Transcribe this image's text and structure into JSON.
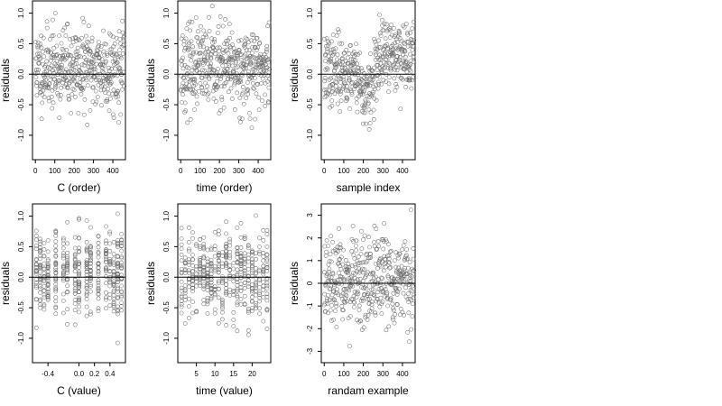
{
  "chart_data": [
    {
      "type": "scatter",
      "xlabel": "C (order)",
      "ylabel": "residuals",
      "xlim": [
        -15,
        465
      ],
      "ylim": [
        -1.4,
        1.2
      ],
      "xticks": [
        0,
        100,
        200,
        300,
        400
      ],
      "xtick_labels": [
        "0",
        "100",
        "200",
        "300",
        "400"
      ],
      "yticks": [
        -1.0,
        -0.5,
        0.0,
        0.5,
        1.0
      ],
      "ytick_labels": [
        "-1.0",
        "-0.5",
        "0.0",
        "0.5",
        "1.0"
      ],
      "hline": 0,
      "x_kind": "order",
      "seed": 11,
      "points": []
    },
    {
      "type": "scatter",
      "xlabel": "time (order)",
      "ylabel": "residuals",
      "xlim": [
        -15,
        465
      ],
      "ylim": [
        -1.4,
        1.2
      ],
      "xticks": [
        0,
        100,
        200,
        300,
        400
      ],
      "xtick_labels": [
        "0",
        "100",
        "200",
        "300",
        "400"
      ],
      "yticks": [
        -1.0,
        -0.5,
        0.0,
        0.5,
        1.0
      ],
      "ytick_labels": [
        "-1.0",
        "-0.5",
        "0.0",
        "0.5",
        "1.0"
      ],
      "hline": 0,
      "x_kind": "order",
      "seed": 23,
      "points": []
    },
    {
      "type": "scatter",
      "xlabel": "sample index",
      "ylabel": "residuals",
      "xlim": [
        -15,
        465
      ],
      "ylim": [
        -1.4,
        1.2
      ],
      "xticks": [
        0,
        100,
        200,
        300,
        400
      ],
      "xtick_labels": [
        "0",
        "100",
        "200",
        "300",
        "400"
      ],
      "yticks": [
        -1.0,
        -0.5,
        0.0,
        0.5,
        1.0
      ],
      "ytick_labels": [
        "-1.0",
        "-0.5",
        "0.0",
        "0.5",
        "1.0"
      ],
      "hline": 0,
      "x_kind": "index_trend",
      "seed": 37,
      "points": []
    },
    {
      "type": "scatter",
      "xlabel": "C (value)",
      "ylabel": "residuals",
      "xlim": [
        -0.6,
        0.6
      ],
      "ylim": [
        -1.4,
        1.2
      ],
      "xticks": [
        -0.4,
        0.0,
        0.2,
        0.4
      ],
      "xtick_labels": [
        "-0.4",
        "0.0",
        "0.2",
        "0.4"
      ],
      "yticks": [
        -1.0,
        -0.5,
        0.0,
        0.5,
        1.0
      ],
      "ytick_labels": [
        "-1.0",
        "-0.5",
        "0.0",
        "0.5",
        "1.0"
      ],
      "hline": 0,
      "x_kind": "discrete",
      "x_levels": [
        -0.55,
        -0.5,
        -0.45,
        -0.4,
        -0.3,
        -0.2,
        -0.15,
        -0.05,
        0.0,
        0.1,
        0.15,
        0.25,
        0.35,
        0.4,
        0.45,
        0.5,
        0.55
      ],
      "seed": 41,
      "points": []
    },
    {
      "type": "scatter",
      "xlabel": "time (value)",
      "ylabel": "residuals",
      "xlim": [
        0,
        25
      ],
      "ylim": [
        -1.4,
        1.2
      ],
      "xticks": [
        5,
        10,
        15,
        20
      ],
      "xtick_labels": [
        "5",
        "10",
        "15",
        "20"
      ],
      "yticks": [
        -1.0,
        -0.5,
        0.0,
        0.5,
        1.0
      ],
      "ytick_labels": [
        "-1.0",
        "-0.5",
        "0.0",
        "0.5",
        "1.0"
      ],
      "hline": 0,
      "x_kind": "discrete",
      "x_levels": [
        1,
        2,
        3,
        4,
        5,
        6,
        7,
        8,
        9,
        10,
        11,
        12,
        13,
        14,
        15,
        16,
        17,
        18,
        19,
        20,
        21,
        22,
        23,
        24
      ],
      "seed": 53,
      "points": []
    },
    {
      "type": "scatter",
      "xlabel": "randam example",
      "ylabel": "residuals",
      "xlim": [
        -15,
        465
      ],
      "ylim": [
        -3.5,
        3.5
      ],
      "xticks": [
        0,
        100,
        200,
        300,
        400
      ],
      "xtick_labels": [
        "0",
        "100",
        "200",
        "300",
        "400"
      ],
      "yticks": [
        -3,
        -2,
        -1,
        0,
        1,
        2,
        3
      ],
      "ytick_labels": [
        "-3",
        "-2",
        "-1",
        "0",
        "1",
        "2",
        "3"
      ],
      "hline": 0,
      "x_kind": "order_normal",
      "seed": 67,
      "points": []
    }
  ]
}
